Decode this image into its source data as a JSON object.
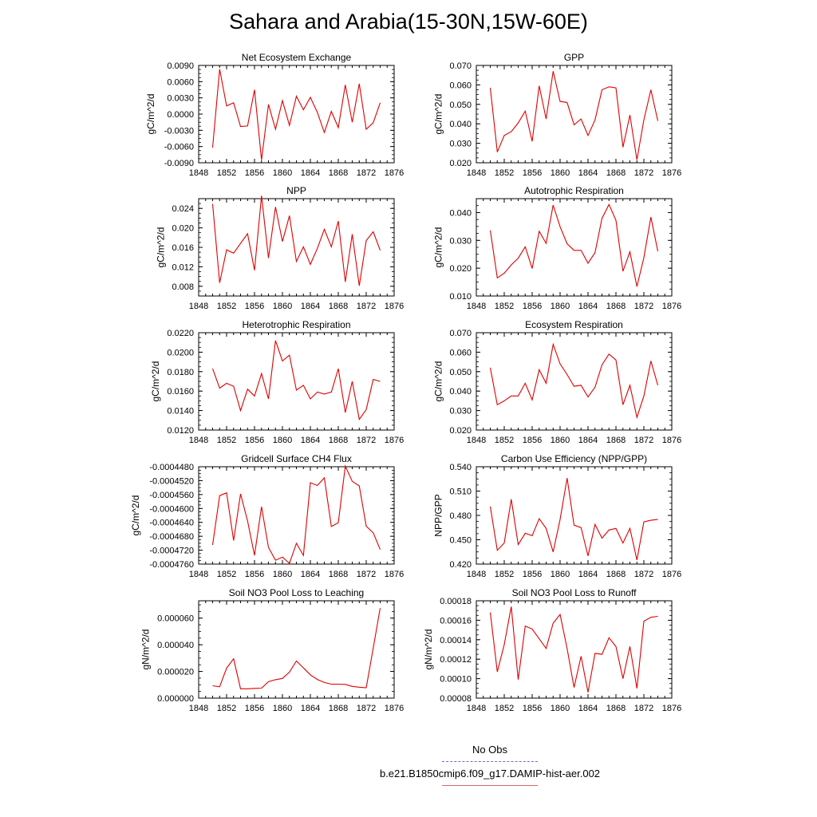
{
  "figure_title": "Sahara and Arabia(15-30N,15W-60E)",
  "legend": {
    "obs_label": "No Obs",
    "obs_color": "#6a6ae0",
    "run_label": "b.e21.B1850cmip6.f09_g17.DAMIP-hist-aer.002",
    "run_color": "#e00000"
  },
  "chart_data": [
    {
      "type": "line",
      "title": "Net Ecosystem Exchange",
      "xlabel": "",
      "ylabel": "gC/m^2/d",
      "xlim": [
        1848,
        1876
      ],
      "ylim": [
        -0.009,
        0.009
      ],
      "xticks": [
        "1848",
        "1852",
        "1856",
        "1860",
        "1864",
        "1868",
        "1872",
        "1876"
      ],
      "yticks": [
        "-0.0090",
        "-0.0060",
        "-0.0030",
        "0.0000",
        "0.0030",
        "0.0060",
        "0.0090"
      ],
      "yticks_values": [
        -0.009,
        -0.006,
        -0.003,
        0.0,
        0.003,
        0.006,
        0.009
      ],
      "grid": false,
      "series": [
        {
          "color": "#e00000",
          "x": [
            1850,
            1851,
            1852,
            1853,
            1854,
            1855,
            1856,
            1857,
            1858,
            1859,
            1860,
            1861,
            1862,
            1863,
            1864,
            1865,
            1866,
            1867,
            1868,
            1869,
            1870,
            1871,
            1872,
            1873,
            1874
          ],
          "values": [
            -0.0062,
            0.0083,
            0.0015,
            0.0021,
            -0.0023,
            -0.0022,
            0.0045,
            -0.0085,
            0.0018,
            -0.0028,
            0.0025,
            -0.0021,
            0.0033,
            0.0008,
            0.0031,
            0.0003,
            -0.0034,
            0.0005,
            -0.0025,
            0.0054,
            -0.0015,
            0.0056,
            -0.0028,
            -0.0016,
            0.0021
          ]
        }
      ]
    },
    {
      "type": "line",
      "title": "GPP",
      "xlabel": "",
      "ylabel": "gC/m^2/d",
      "xlim": [
        1848,
        1876
      ],
      "ylim": [
        0.02,
        0.07
      ],
      "xticks": [
        "1848",
        "1852",
        "1856",
        "1860",
        "1864",
        "1868",
        "1872",
        "1876"
      ],
      "yticks": [
        "0.020",
        "0.030",
        "0.040",
        "0.050",
        "0.060",
        "0.070"
      ],
      "yticks_values": [
        0.02,
        0.03,
        0.04,
        0.05,
        0.06,
        0.07
      ],
      "grid": false,
      "series": [
        {
          "color": "#e00000",
          "x": [
            1850,
            1851,
            1852,
            1853,
            1854,
            1855,
            1856,
            1857,
            1858,
            1859,
            1860,
            1861,
            1862,
            1863,
            1864,
            1865,
            1866,
            1867,
            1868,
            1869,
            1870,
            1871,
            1872,
            1873,
            1874
          ],
          "values": [
            0.0585,
            0.0255,
            0.034,
            0.036,
            0.0405,
            0.0465,
            0.031,
            0.0595,
            0.0425,
            0.067,
            0.0515,
            0.051,
            0.0395,
            0.0425,
            0.034,
            0.042,
            0.0575,
            0.059,
            0.0585,
            0.028,
            0.0445,
            0.0215,
            0.042,
            0.0575,
            0.0415
          ]
        }
      ]
    },
    {
      "type": "line",
      "title": "NPP",
      "xlabel": "",
      "ylabel": "gC/m^2/d",
      "xlim": [
        1848,
        1876
      ],
      "ylim": [
        0.006,
        0.026
      ],
      "xticks": [
        "1848",
        "1852",
        "1856",
        "1860",
        "1864",
        "1868",
        "1872",
        "1876"
      ],
      "yticks": [
        "0.008",
        "0.012",
        "0.016",
        "0.020",
        "0.024"
      ],
      "yticks_values": [
        0.008,
        0.012,
        0.016,
        0.02,
        0.024
      ],
      "grid": false,
      "series": [
        {
          "color": "#e00000",
          "x": [
            1850,
            1851,
            1852,
            1853,
            1854,
            1855,
            1856,
            1857,
            1858,
            1859,
            1860,
            1861,
            1862,
            1863,
            1864,
            1865,
            1866,
            1867,
            1868,
            1869,
            1870,
            1871,
            1872,
            1873,
            1874
          ],
          "values": [
            0.0249,
            0.0087,
            0.0155,
            0.0148,
            0.0168,
            0.0188,
            0.0113,
            0.0266,
            0.0138,
            0.0243,
            0.0172,
            0.0225,
            0.0131,
            0.0161,
            0.0125,
            0.0158,
            0.0197,
            0.0161,
            0.0214,
            0.0089,
            0.0187,
            0.0081,
            0.0174,
            0.0192,
            0.0154
          ]
        }
      ]
    },
    {
      "type": "line",
      "title": "Autotrophic Respiration",
      "xlabel": "",
      "ylabel": "gC/m^2/d",
      "xlim": [
        1848,
        1876
      ],
      "ylim": [
        0.01,
        0.045
      ],
      "xticks": [
        "1848",
        "1852",
        "1856",
        "1860",
        "1864",
        "1868",
        "1872",
        "1876"
      ],
      "yticks": [
        "0.010",
        "0.020",
        "0.030",
        "0.040"
      ],
      "yticks_values": [
        0.01,
        0.02,
        0.03,
        0.04
      ],
      "grid": false,
      "series": [
        {
          "color": "#e00000",
          "x": [
            1850,
            1851,
            1852,
            1853,
            1854,
            1855,
            1856,
            1857,
            1858,
            1859,
            1860,
            1861,
            1862,
            1863,
            1864,
            1865,
            1866,
            1867,
            1868,
            1869,
            1870,
            1871,
            1872,
            1873,
            1874
          ],
          "values": [
            0.0336,
            0.0165,
            0.0182,
            0.0212,
            0.0236,
            0.0277,
            0.0199,
            0.0333,
            0.0289,
            0.0427,
            0.0349,
            0.0288,
            0.0264,
            0.0264,
            0.0218,
            0.0256,
            0.0379,
            0.0429,
            0.0372,
            0.0189,
            0.0259,
            0.0134,
            0.0238,
            0.0384,
            0.0261
          ]
        }
      ]
    },
    {
      "type": "line",
      "title": "Heterotrophic Respiration",
      "xlabel": "",
      "ylabel": "gC/m^2/d",
      "xlim": [
        1848,
        1876
      ],
      "ylim": [
        0.012,
        0.022
      ],
      "xticks": [
        "1848",
        "1852",
        "1856",
        "1860",
        "1864",
        "1868",
        "1872",
        "1876"
      ],
      "yticks": [
        "0.0120",
        "0.0140",
        "0.0160",
        "0.0180",
        "0.0200",
        "0.0220"
      ],
      "yticks_values": [
        0.012,
        0.014,
        0.016,
        0.018,
        0.02,
        0.022
      ],
      "grid": false,
      "series": [
        {
          "color": "#e00000",
          "x": [
            1850,
            1851,
            1852,
            1853,
            1854,
            1855,
            1856,
            1857,
            1858,
            1859,
            1860,
            1861,
            1862,
            1863,
            1864,
            1865,
            1866,
            1867,
            1868,
            1869,
            1870,
            1871,
            1872,
            1873,
            1874
          ],
          "values": [
            0.0183,
            0.0163,
            0.0168,
            0.0165,
            0.014,
            0.0162,
            0.0155,
            0.0178,
            0.0152,
            0.0212,
            0.0191,
            0.0197,
            0.0161,
            0.0166,
            0.0152,
            0.0159,
            0.0157,
            0.0159,
            0.0183,
            0.0138,
            0.017,
            0.0131,
            0.0141,
            0.0172,
            0.017
          ]
        }
      ]
    },
    {
      "type": "line",
      "title": "Ecosystem Respiration",
      "xlabel": "",
      "ylabel": "gC/m^2/d",
      "xlim": [
        1848,
        1876
      ],
      "ylim": [
        0.02,
        0.07
      ],
      "xticks": [
        "1848",
        "1852",
        "1856",
        "1860",
        "1864",
        "1868",
        "1872",
        "1876"
      ],
      "yticks": [
        "0.020",
        "0.030",
        "0.040",
        "0.050",
        "0.060",
        "0.070"
      ],
      "yticks_values": [
        0.02,
        0.03,
        0.04,
        0.05,
        0.06,
        0.07
      ],
      "grid": false,
      "series": [
        {
          "color": "#e00000",
          "x": [
            1850,
            1851,
            1852,
            1853,
            1854,
            1855,
            1856,
            1857,
            1858,
            1859,
            1860,
            1861,
            1862,
            1863,
            1864,
            1865,
            1866,
            1867,
            1868,
            1869,
            1870,
            1871,
            1872,
            1873,
            1874
          ],
          "values": [
            0.052,
            0.033,
            0.035,
            0.0375,
            0.0375,
            0.044,
            0.0355,
            0.051,
            0.044,
            0.064,
            0.054,
            0.0485,
            0.0425,
            0.043,
            0.037,
            0.042,
            0.0535,
            0.059,
            0.056,
            0.033,
            0.043,
            0.0265,
            0.0375,
            0.0555,
            0.043
          ]
        }
      ]
    },
    {
      "type": "line",
      "title": "Gridcell Surface CH4 Flux",
      "xlabel": "",
      "ylabel": "gC/m^2/d",
      "xlim": [
        1848,
        1876
      ],
      "ylim": [
        -0.000476,
        -0.000448
      ],
      "xticks": [
        "1848",
        "1852",
        "1856",
        "1860",
        "1864",
        "1868",
        "1872",
        "1876"
      ],
      "yticks": [
        "-0.0004760",
        "-0.0004720",
        "-0.0004680",
        "-0.0004640",
        "-0.0004600",
        "-0.0004560",
        "-0.0004520",
        "-0.0004480"
      ],
      "yticks_values": [
        -0.000476,
        -0.000472,
        -0.000468,
        -0.000464,
        -0.00046,
        -0.000456,
        -0.000452,
        -0.000448
      ],
      "grid": false,
      "series": [
        {
          "color": "#e00000",
          "x": [
            1850,
            1851,
            1852,
            1853,
            1854,
            1855,
            1856,
            1857,
            1858,
            1859,
            1860,
            1861,
            1862,
            1863,
            1864,
            1865,
            1866,
            1867,
            1868,
            1869,
            1870,
            1871,
            1872,
            1873,
            1874
          ],
          "values": [
            -0.0004705,
            -0.0004563,
            -0.0004555,
            -0.0004692,
            -0.0004558,
            -0.0004636,
            -0.0004735,
            -0.0004595,
            -0.0004712,
            -0.0004749,
            -0.000474,
            -0.0004758,
            -0.00047,
            -0.0004735,
            -0.0004526,
            -0.0004534,
            -0.0004512,
            -0.0004652,
            -0.0004641,
            -0.0004478,
            -0.0004522,
            -0.0004535,
            -0.0004651,
            -0.000467,
            -0.0004718
          ]
        }
      ]
    },
    {
      "type": "line",
      "title": "Carbon Use Efficiency (NPP/GPP)",
      "xlabel": "",
      "ylabel": "NPP/GPP",
      "xlim": [
        1848,
        1876
      ],
      "ylim": [
        0.42,
        0.54
      ],
      "xticks": [
        "1848",
        "1852",
        "1856",
        "1860",
        "1864",
        "1868",
        "1872",
        "1876"
      ],
      "yticks": [
        "0.420",
        "0.450",
        "0.480",
        "0.510",
        "0.540"
      ],
      "yticks_values": [
        0.42,
        0.45,
        0.48,
        0.51,
        0.54
      ],
      "grid": false,
      "series": [
        {
          "color": "#e00000",
          "x": [
            1850,
            1851,
            1852,
            1853,
            1854,
            1855,
            1856,
            1857,
            1858,
            1859,
            1860,
            1861,
            1862,
            1863,
            1864,
            1865,
            1866,
            1867,
            1868,
            1869,
            1870,
            1871,
            1872,
            1873,
            1874
          ],
          "values": [
            0.491,
            0.437,
            0.446,
            0.5,
            0.444,
            0.458,
            0.455,
            0.476,
            0.464,
            0.435,
            0.475,
            0.526,
            0.468,
            0.465,
            0.43,
            0.469,
            0.452,
            0.462,
            0.464,
            0.446,
            0.464,
            0.425,
            0.472,
            0.474,
            0.475
          ]
        }
      ]
    },
    {
      "type": "line",
      "title": "Soil NO3 Pool Loss to Leaching",
      "xlabel": "",
      "ylabel": "gN/m^2/d",
      "xlim": [
        1848,
        1876
      ],
      "ylim": [
        0.0,
        7.3e-05
      ],
      "xticks": [
        "1848",
        "1852",
        "1856",
        "1860",
        "1864",
        "1868",
        "1872",
        "1876"
      ],
      "yticks": [
        "0.000000",
        "0.000020",
        "0.000040",
        "0.000060"
      ],
      "yticks_values": [
        0.0,
        2e-05,
        4e-05,
        6e-05
      ],
      "grid": false,
      "series": [
        {
          "color": "#e00000",
          "x": [
            1850,
            1851,
            1852,
            1853,
            1854,
            1855,
            1856,
            1857,
            1858,
            1859,
            1860,
            1861,
            1862,
            1863,
            1864,
            1865,
            1866,
            1867,
            1868,
            1869,
            1870,
            1871,
            1872,
            1873,
            1874
          ],
          "values": [
            9.3e-06,
            8.5e-06,
            2.25e-05,
            2.95e-05,
            7e-06,
            7e-06,
            7.3e-06,
            7.5e-06,
            1.23e-05,
            1.38e-05,
            1.48e-05,
            1.95e-05,
            2.78e-05,
            2.27e-05,
            1.75e-05,
            1.4e-05,
            1.17e-05,
            1.05e-05,
            1.05e-05,
            1.03e-05,
            8.8e-06,
            8.2e-06,
            7.8e-06,
            3.75e-05,
            6.75e-05
          ]
        }
      ]
    },
    {
      "type": "line",
      "title": "Soil NO3 Pool Loss to Runoff",
      "xlabel": "",
      "ylabel": "gN/m^2/d",
      "xlim": [
        1848,
        1876
      ],
      "ylim": [
        8e-05,
        0.00018
      ],
      "xticks": [
        "1848",
        "1852",
        "1856",
        "1860",
        "1864",
        "1868",
        "1872",
        "1876"
      ],
      "yticks": [
        "0.00008",
        "0.00010",
        "0.00012",
        "0.00014",
        "0.00016",
        "0.00018"
      ],
      "yticks_values": [
        8e-05,
        0.0001,
        0.00012,
        0.00014,
        0.00016,
        0.00018
      ],
      "grid": false,
      "series": [
        {
          "color": "#e00000",
          "x": [
            1850,
            1851,
            1852,
            1853,
            1854,
            1855,
            1856,
            1857,
            1858,
            1859,
            1860,
            1861,
            1862,
            1863,
            1864,
            1865,
            1866,
            1867,
            1868,
            1869,
            1870,
            1871,
            1872,
            1873,
            1874
          ],
          "values": [
            0.000168,
            0.000107,
            0.000135,
            0.000174,
            9.9e-05,
            0.000154,
            0.000151,
            0.000141,
            0.000131,
            0.000157,
            0.000166,
            0.000131,
            9.1e-05,
            0.000123,
            8.6e-05,
            0.000126,
            0.000125,
            0.000142,
            0.000133,
            0.0001,
            0.000133,
            9e-05,
            0.000159,
            0.000163,
            0.000164
          ]
        }
      ]
    }
  ]
}
